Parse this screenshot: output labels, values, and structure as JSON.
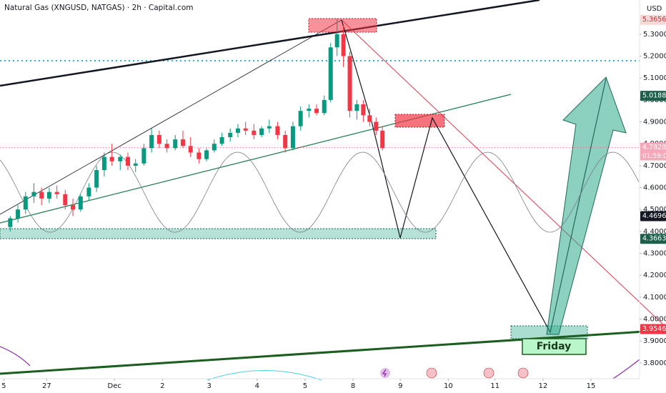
{
  "chart_data": {
    "type": "candlestick",
    "title": "Natural Gas (XNGUSD, NATGAS) · 2h · Capital.com",
    "currency": "USD",
    "grid": false,
    "up_color": "#089981",
    "down_color": "#f23645",
    "xlim": [
      0,
      100
    ],
    "xticks": [
      {
        "value": 0.6,
        "label": "5"
      },
      {
        "value": 7.3,
        "label": "27"
      },
      {
        "value": 17.9,
        "label": "Dec"
      },
      {
        "value": 25.4,
        "label": "2"
      },
      {
        "value": 32.7,
        "label": "3"
      },
      {
        "value": 40.2,
        "label": "4"
      },
      {
        "value": 47.7,
        "label": "5"
      },
      {
        "value": 55.2,
        "label": "8"
      },
      {
        "value": 62.6,
        "label": "9"
      },
      {
        "value": 70.1,
        "label": "10"
      },
      {
        "value": 77.4,
        "label": "11"
      },
      {
        "value": 84.9,
        "label": "12"
      },
      {
        "value": 92.4,
        "label": "15"
      }
    ],
    "ylim": [
      3.728,
      5.456
    ],
    "yticks": [
      {
        "value": 3.8,
        "label": "3.8000"
      },
      {
        "value": 3.9,
        "label": "3.9000"
      },
      {
        "value": 4.0,
        "label": "4.0000"
      },
      {
        "value": 4.1,
        "label": "4.1000"
      },
      {
        "value": 4.2,
        "label": "4.2000"
      },
      {
        "value": 4.3,
        "label": "4.3000"
      },
      {
        "value": 4.4,
        "label": "4.4000"
      },
      {
        "value": 4.5,
        "label": "4.5000"
      },
      {
        "value": 4.6,
        "label": "4.6000"
      },
      {
        "value": 4.7,
        "label": "4.7000"
      },
      {
        "value": 4.8,
        "label": "4.8000"
      },
      {
        "value": 4.9,
        "label": "4.9000"
      },
      {
        "value": 5.0,
        "label": "5.0000"
      },
      {
        "value": 5.1,
        "label": "5.1000"
      },
      {
        "value": 5.2,
        "label": "5.2000"
      },
      {
        "value": 5.3,
        "label": "5.3000"
      }
    ],
    "x": [
      1.6,
      2.8,
      4.0,
      5.3,
      6.5,
      7.7,
      8.9,
      10.2,
      11.4,
      12.6,
      13.9,
      15.1,
      16.3,
      17.5,
      18.8,
      20.0,
      21.2,
      22.5,
      23.7,
      24.9,
      26.1,
      27.4,
      28.6,
      29.8,
      31.1,
      32.3,
      33.5,
      34.7,
      36.0,
      37.2,
      38.4,
      39.7,
      40.9,
      42.1,
      43.4,
      44.6,
      45.8,
      47.0,
      48.3,
      49.5,
      50.7,
      51.7,
      52.7,
      53.7,
      54.7,
      55.8,
      56.8,
      57.8,
      58.8,
      59.8
    ],
    "open": [
      4.42,
      4.46,
      4.5,
      4.56,
      4.58,
      4.55,
      4.58,
      4.57,
      4.52,
      4.5,
      4.56,
      4.6,
      4.68,
      4.74,
      4.72,
      4.74,
      4.7,
      4.71,
      4.78,
      4.84,
      4.8,
      4.78,
      4.82,
      4.79,
      4.76,
      4.73,
      4.77,
      4.8,
      4.83,
      4.85,
      4.87,
      4.86,
      4.84,
      4.87,
      4.88,
      4.84,
      4.78,
      4.88,
      4.95,
      4.96,
      4.94,
      5.0,
      5.24,
      5.3,
      5.2,
      4.95,
      4.98,
      4.93,
      4.9,
      4.86
    ],
    "high": [
      4.47,
      4.52,
      4.58,
      4.62,
      4.6,
      4.6,
      4.61,
      4.59,
      4.55,
      4.57,
      4.62,
      4.7,
      4.76,
      4.8,
      4.75,
      4.76,
      4.73,
      4.8,
      4.87,
      4.86,
      4.82,
      4.84,
      4.86,
      4.83,
      4.78,
      4.78,
      4.82,
      4.85,
      4.87,
      4.89,
      4.9,
      4.89,
      4.88,
      4.91,
      4.9,
      4.86,
      4.9,
      4.97,
      4.98,
      4.98,
      5.02,
      5.26,
      5.37,
      5.34,
      5.22,
      5.0,
      5.0,
      4.96,
      4.92,
      4.88
    ],
    "low": [
      4.4,
      4.44,
      4.48,
      4.53,
      4.52,
      4.53,
      4.55,
      4.5,
      4.47,
      4.49,
      4.54,
      4.58,
      4.65,
      4.7,
      4.68,
      4.68,
      4.67,
      4.7,
      4.76,
      4.78,
      4.76,
      4.77,
      4.78,
      4.74,
      4.71,
      4.72,
      4.76,
      4.79,
      4.81,
      4.83,
      4.84,
      4.82,
      4.83,
      4.85,
      4.82,
      4.76,
      4.77,
      4.86,
      4.92,
      4.93,
      4.93,
      4.99,
      5.2,
      5.15,
      4.92,
      4.91,
      4.9,
      4.88,
      4.84,
      4.77
    ],
    "close": [
      4.46,
      4.5,
      4.56,
      4.58,
      4.55,
      4.58,
      4.57,
      4.52,
      4.5,
      4.56,
      4.6,
      4.68,
      4.74,
      4.72,
      4.74,
      4.7,
      4.71,
      4.78,
      4.84,
      4.8,
      4.78,
      4.82,
      4.79,
      4.76,
      4.73,
      4.77,
      4.8,
      4.83,
      4.85,
      4.87,
      4.86,
      4.84,
      4.87,
      4.88,
      4.84,
      4.78,
      4.88,
      4.95,
      4.96,
      4.94,
      5.0,
      5.24,
      5.3,
      5.2,
      4.95,
      4.98,
      4.93,
      4.9,
      4.86,
      4.78
    ],
    "price_labels": [
      {
        "value": 5.3656,
        "color": "#f8d7da",
        "text_color": "#d32f2f"
      },
      {
        "value": 5.0188,
        "color": "#1e5f4c",
        "text_color": "#ffffff"
      },
      {
        "value": 4.7828,
        "color": "#f7a8b8",
        "text_color": "#ffffff"
      },
      {
        "value": 4.4696,
        "color": "#131722",
        "text_color": "#ffffff"
      },
      {
        "value": 4.3663,
        "color": "#1e5f4c",
        "text_color": "#ffffff"
      },
      {
        "value": 3.9546,
        "color": "#f23645",
        "text_color": "#ffffff"
      }
    ],
    "last_price": 4.7828,
    "countdown": "01:59:08",
    "annotation": "Friday"
  }
}
